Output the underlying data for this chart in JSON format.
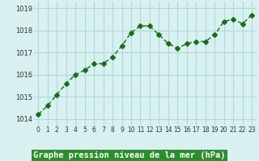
{
  "x": [
    0,
    1,
    2,
    3,
    4,
    5,
    6,
    7,
    8,
    9,
    10,
    11,
    12,
    13,
    14,
    15,
    16,
    17,
    18,
    19,
    20,
    21,
    22,
    23
  ],
  "y": [
    1014.2,
    1014.6,
    1015.1,
    1015.6,
    1016.0,
    1016.2,
    1016.5,
    1016.5,
    1016.8,
    1017.3,
    1017.9,
    1018.2,
    1018.2,
    1017.8,
    1017.4,
    1017.2,
    1017.4,
    1017.5,
    1017.5,
    1017.8,
    1018.4,
    1018.5,
    1018.3,
    1018.7
  ],
  "line_color": "#1a6b1a",
  "marker": "D",
  "marker_size": 3,
  "bg_color": "#d8f0f0",
  "grid_color": "#b0d8d8",
  "ylabel_ticks": [
    1014,
    1015,
    1016,
    1017,
    1018,
    1019
  ],
  "xlabel_label": "Graphe pression niveau de la mer (hPa)",
  "xlim": [
    -0.5,
    23.5
  ],
  "ylim": [
    1013.7,
    1019.3
  ],
  "xtick_labels": [
    "0",
    "1",
    "2",
    "3",
    "4",
    "5",
    "6",
    "7",
    "8",
    "9",
    "10",
    "11",
    "12",
    "13",
    "14",
    "15",
    "16",
    "17",
    "18",
    "19",
    "20",
    "21",
    "22",
    "23"
  ],
  "label_bg_color": "#2e8b2e",
  "label_text_color": "#ffffff",
  "label_fontsize": 7.5
}
